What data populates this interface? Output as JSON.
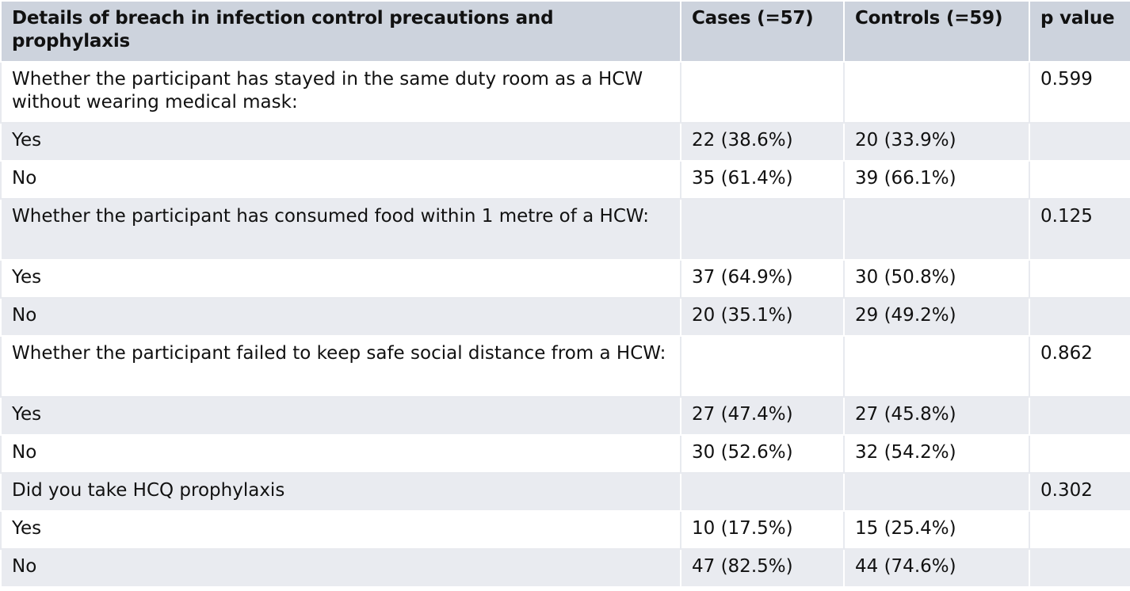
{
  "table": {
    "headers": [
      "Details of breach in infection control precautions and prophylaxis",
      "Cases (=57)",
      "Controls (=59)",
      "p value"
    ],
    "rows": [
      {
        "label": "Whether the participant has stayed in the same duty room as a HCW without wearing medical mask:",
        "cases": "",
        "controls": "",
        "p": "0.599"
      },
      {
        "label": "Yes",
        "cases": "22 (38.6%)",
        "controls": "20 (33.9%)",
        "p": ""
      },
      {
        "label": "No",
        "cases": "35 (61.4%)",
        "controls": "39 (66.1%)",
        "p": ""
      },
      {
        "label": "Whether the participant has consumed food within 1 metre of a HCW:",
        "cases": "",
        "controls": "",
        "p": "0.125"
      },
      {
        "label": "Yes",
        "cases": "37 (64.9%)",
        "controls": "30 (50.8%)",
        "p": ""
      },
      {
        "label": "No",
        "cases": "20 (35.1%)",
        "controls": "29 (49.2%)",
        "p": ""
      },
      {
        "label": "Whether the participant failed to keep safe social distance from a HCW:",
        "cases": "",
        "controls": "",
        "p": "0.862"
      },
      {
        "label": "Yes",
        "cases": "27 (47.4%)",
        "controls": "27 (45.8%)",
        "p": ""
      },
      {
        "label": "No",
        "cases": "30 (52.6%)",
        "controls": "32 (54.2%)",
        "p": ""
      },
      {
        "label": "Did you take HCQ prophylaxis",
        "cases": "",
        "controls": "",
        "p": "0.302"
      },
      {
        "label": "Yes",
        "cases": "10 (17.5%)",
        "controls": "15 (25.4%)",
        "p": ""
      },
      {
        "label": "No",
        "cases": "47 (82.5%)",
        "controls": "44 (74.6%)",
        "p": ""
      }
    ]
  }
}
